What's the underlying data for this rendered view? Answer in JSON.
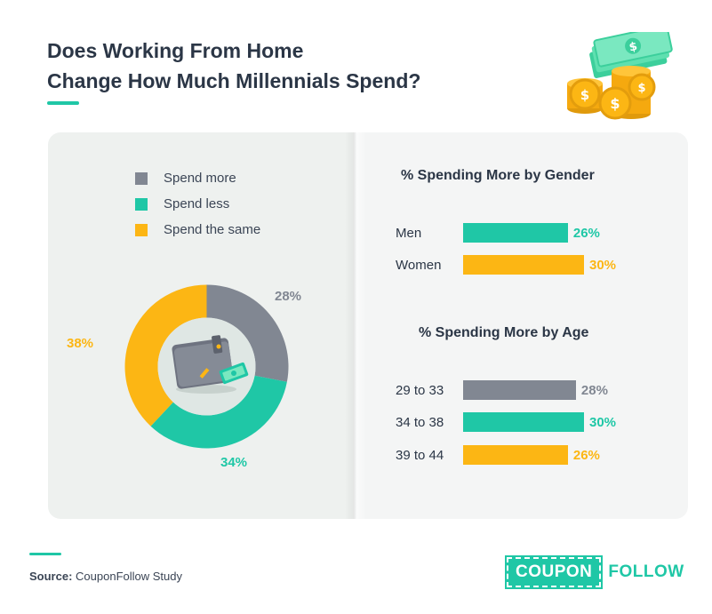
{
  "title": {
    "line1": "Does Working From Home",
    "line2": "Change How Much Millennials Spend?"
  },
  "colors": {
    "more": "#818792",
    "less": "#1fc7a6",
    "same": "#fcb614",
    "accent": "#1fc7a6"
  },
  "icons": {
    "header": "money-stack-coins-icon",
    "donut_center": "wallet-icon"
  },
  "chart_data": [
    {
      "type": "pie",
      "variant": "donut",
      "legend": [
        "Spend more",
        "Spend less",
        "Spend the same"
      ],
      "legend_placement": "top",
      "slices": [
        {
          "name": "Spend more",
          "value": 28,
          "label": "28%"
        },
        {
          "name": "Spend less",
          "value": 34,
          "label": "34%"
        },
        {
          "name": "Spend the same",
          "value": 38,
          "label": "38%"
        }
      ]
    },
    {
      "type": "bar",
      "orientation": "horizontal",
      "title": "% Spending More by Gender",
      "categories": [
        "Men",
        "Women"
      ],
      "values": [
        26,
        30
      ],
      "labels": [
        "26%",
        "30%"
      ]
    },
    {
      "type": "bar",
      "orientation": "horizontal",
      "title": "% Spending More by Age",
      "categories": [
        "29 to 33",
        "34 to 38",
        "39 to 44"
      ],
      "values": [
        28,
        30,
        26
      ],
      "labels": [
        "28%",
        "30%",
        "26%"
      ]
    }
  ],
  "footer": {
    "source_label": "Source:",
    "source_text": "CouponFollow Study"
  },
  "logo": {
    "coupon": "COUPON",
    "follow": "FOLLOW"
  }
}
